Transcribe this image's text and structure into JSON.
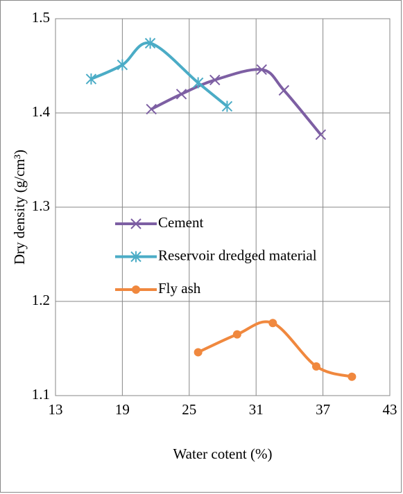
{
  "chart_data": {
    "type": "line",
    "x_label": "Water cotent (%)",
    "y_label": "Dry density (g/cm³)",
    "xlim": [
      13,
      43
    ],
    "xticks": [
      13,
      19,
      25,
      31,
      37,
      43
    ],
    "ylim": [
      1.1,
      1.5
    ],
    "yticks": [
      1.1,
      1.2,
      1.3,
      1.4,
      1.5
    ],
    "grid": true,
    "smooth": true,
    "legend": "center-left",
    "series": [
      {
        "name": "Cement",
        "color": "#7d5fa3",
        "marker": "x",
        "x": [
          21.6,
          24.3,
          27.3,
          31.5,
          33.5,
          36.8
        ],
        "values": [
          1.404,
          1.42,
          1.435,
          1.446,
          1.424,
          1.377
        ]
      },
      {
        "name": "Reservoir dredged material",
        "color": "#4bacc6",
        "marker": "asterisk",
        "x": [
          16.2,
          19.0,
          21.5,
          25.8,
          28.4
        ],
        "values": [
          1.436,
          1.451,
          1.474,
          1.432,
          1.407
        ]
      },
      {
        "name": "Fly ash",
        "color": "#f0883e",
        "marker": "circle",
        "x": [
          25.8,
          29.3,
          32.5,
          36.4,
          39.6
        ],
        "values": [
          1.146,
          1.165,
          1.177,
          1.131,
          1.12
        ]
      }
    ]
  }
}
